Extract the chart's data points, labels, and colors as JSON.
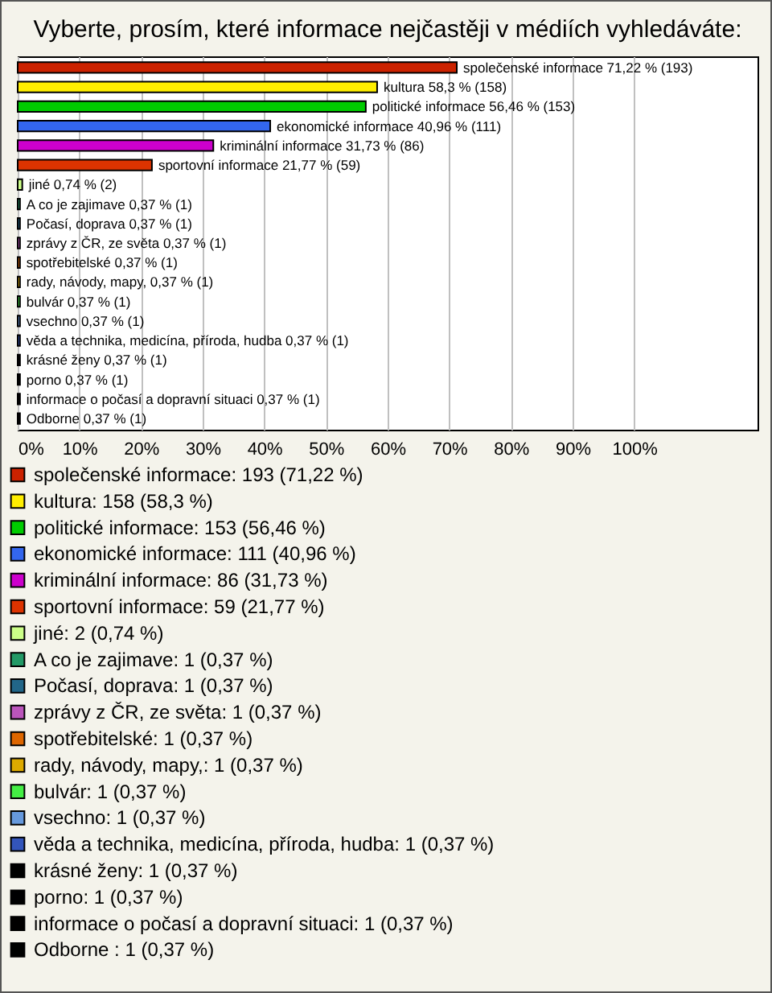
{
  "chart_data": {
    "type": "bar",
    "orientation": "horizontal",
    "title": "Vyberte, prosím, které informace nejčastěji v médiích vyhledáváte:",
    "categories": [
      null,
      null,
      null,
      null,
      null,
      null,
      null,
      null,
      null,
      null,
      null,
      null,
      null,
      null,
      null,
      null,
      null,
      null,
      null
    ],
    "series": [
      {
        "name": "společenské informace: 193 (71,22 %)",
        "color": "#cc2200",
        "values": [
          71.22,
          null,
          null,
          null,
          null,
          null,
          null,
          null,
          null,
          null,
          null,
          null,
          null,
          null,
          null,
          null,
          null,
          null,
          null
        ],
        "value_labels": [
          "společenské informace 71,22 % (193)",
          null,
          null,
          null,
          null,
          null,
          null,
          null,
          null,
          null,
          null,
          null,
          null,
          null,
          null,
          null,
          null,
          null,
          null
        ]
      },
      {
        "name": "kultura: 158 (58,3 %)",
        "color": "#ffee00",
        "values": [
          null,
          58.3,
          null,
          null,
          null,
          null,
          null,
          null,
          null,
          null,
          null,
          null,
          null,
          null,
          null,
          null,
          null,
          null,
          null
        ],
        "value_labels": [
          null,
          "kultura 58,3 % (158)",
          null,
          null,
          null,
          null,
          null,
          null,
          null,
          null,
          null,
          null,
          null,
          null,
          null,
          null,
          null,
          null,
          null
        ]
      },
      {
        "name": "politické informace: 153 (56,46 %)",
        "color": "#00cc00",
        "values": [
          null,
          null,
          56.46,
          null,
          null,
          null,
          null,
          null,
          null,
          null,
          null,
          null,
          null,
          null,
          null,
          null,
          null,
          null,
          null
        ],
        "value_labels": [
          null,
          null,
          "politické informace 56,46 % (153)",
          null,
          null,
          null,
          null,
          null,
          null,
          null,
          null,
          null,
          null,
          null,
          null,
          null,
          null,
          null,
          null
        ]
      },
      {
        "name": "ekonomické informace: 111 (40,96 %)",
        "color": "#3366ee",
        "values": [
          null,
          null,
          null,
          40.96,
          null,
          null,
          null,
          null,
          null,
          null,
          null,
          null,
          null,
          null,
          null,
          null,
          null,
          null,
          null
        ],
        "value_labels": [
          null,
          null,
          null,
          "ekonomické informace 40,96 % (111)",
          null,
          null,
          null,
          null,
          null,
          null,
          null,
          null,
          null,
          null,
          null,
          null,
          null,
          null,
          null
        ]
      },
      {
        "name": "kriminální informace: 86 (31,73 %)",
        "color": "#cc00cc",
        "values": [
          null,
          null,
          null,
          null,
          31.73,
          null,
          null,
          null,
          null,
          null,
          null,
          null,
          null,
          null,
          null,
          null,
          null,
          null,
          null
        ],
        "value_labels": [
          null,
          null,
          null,
          null,
          "kriminální informace 31,73 % (86)",
          null,
          null,
          null,
          null,
          null,
          null,
          null,
          null,
          null,
          null,
          null,
          null,
          null,
          null
        ]
      },
      {
        "name": "sportovní informace: 59 (21,77 %)",
        "color": "#dd3300",
        "values": [
          null,
          null,
          null,
          null,
          null,
          21.77,
          null,
          null,
          null,
          null,
          null,
          null,
          null,
          null,
          null,
          null,
          null,
          null,
          null
        ],
        "value_labels": [
          null,
          null,
          null,
          null,
          null,
          "sportovní informace 21,77 % (59)",
          null,
          null,
          null,
          null,
          null,
          null,
          null,
          null,
          null,
          null,
          null,
          null,
          null
        ]
      },
      {
        "name": "jiné: 2 (0,74 %)",
        "color": "#ccff88",
        "values": [
          null,
          null,
          null,
          null,
          null,
          null,
          0.74,
          null,
          null,
          null,
          null,
          null,
          null,
          null,
          null,
          null,
          null,
          null,
          null
        ],
        "value_labels": [
          null,
          null,
          null,
          null,
          null,
          null,
          "jiné 0,74 % (2)",
          null,
          null,
          null,
          null,
          null,
          null,
          null,
          null,
          null,
          null,
          null,
          null
        ]
      },
      {
        "name": "A co je zajimave: 1 (0,37 %)",
        "color": "#229966",
        "values": [
          null,
          null,
          null,
          null,
          null,
          null,
          null,
          0.37,
          null,
          null,
          null,
          null,
          null,
          null,
          null,
          null,
          null,
          null,
          null
        ],
        "value_labels": [
          null,
          null,
          null,
          null,
          null,
          null,
          null,
          "A co je zajimave 0,37 % (1)",
          null,
          null,
          null,
          null,
          null,
          null,
          null,
          null,
          null,
          null,
          null
        ]
      },
      {
        "name": "Počasí, doprava: 1 (0,37 %)",
        "color": "#226688",
        "values": [
          null,
          null,
          null,
          null,
          null,
          null,
          null,
          null,
          0.37,
          null,
          null,
          null,
          null,
          null,
          null,
          null,
          null,
          null,
          null
        ],
        "value_labels": [
          null,
          null,
          null,
          null,
          null,
          null,
          null,
          null,
          "Počasí, doprava 0,37 % (1)",
          null,
          null,
          null,
          null,
          null,
          null,
          null,
          null,
          null,
          null
        ]
      },
      {
        "name": "zprávy z ČR, ze světa: 1 (0,37 %)",
        "color": "#bb55bb",
        "values": [
          null,
          null,
          null,
          null,
          null,
          null,
          null,
          null,
          null,
          0.37,
          null,
          null,
          null,
          null,
          null,
          null,
          null,
          null,
          null
        ],
        "value_labels": [
          null,
          null,
          null,
          null,
          null,
          null,
          null,
          null,
          null,
          "zprávy z ČR, ze světa 0,37 % (1)",
          null,
          null,
          null,
          null,
          null,
          null,
          null,
          null,
          null
        ]
      },
      {
        "name": "spotřebitelské: 1 (0,37 %)",
        "color": "#dd6600",
        "values": [
          null,
          null,
          null,
          null,
          null,
          null,
          null,
          null,
          null,
          null,
          0.37,
          null,
          null,
          null,
          null,
          null,
          null,
          null,
          null
        ],
        "value_labels": [
          null,
          null,
          null,
          null,
          null,
          null,
          null,
          null,
          null,
          null,
          "spotřebitelské 0,37 % (1)",
          null,
          null,
          null,
          null,
          null,
          null,
          null,
          null
        ]
      },
      {
        "name": "rady, návody, mapy,: 1 (0,37 %)",
        "color": "#ddaa00",
        "values": [
          null,
          null,
          null,
          null,
          null,
          null,
          null,
          null,
          null,
          null,
          null,
          0.37,
          null,
          null,
          null,
          null,
          null,
          null,
          null
        ],
        "value_labels": [
          null,
          null,
          null,
          null,
          null,
          null,
          null,
          null,
          null,
          null,
          null,
          "rady, návody, mapy, 0,37 % (1)",
          null,
          null,
          null,
          null,
          null,
          null,
          null
        ]
      },
      {
        "name": "bulvár: 1 (0,37 %)",
        "color": "#44ee44",
        "values": [
          null,
          null,
          null,
          null,
          null,
          null,
          null,
          null,
          null,
          null,
          null,
          null,
          0.37,
          null,
          null,
          null,
          null,
          null,
          null
        ],
        "value_labels": [
          null,
          null,
          null,
          null,
          null,
          null,
          null,
          null,
          null,
          null,
          null,
          null,
          "bulvár 0,37 % (1)",
          null,
          null,
          null,
          null,
          null,
          null
        ]
      },
      {
        "name": "vsechno: 1 (0,37 %)",
        "color": "#6699dd",
        "values": [
          null,
          null,
          null,
          null,
          null,
          null,
          null,
          null,
          null,
          null,
          null,
          null,
          null,
          0.37,
          null,
          null,
          null,
          null,
          null
        ],
        "value_labels": [
          null,
          null,
          null,
          null,
          null,
          null,
          null,
          null,
          null,
          null,
          null,
          null,
          null,
          "vsechno 0,37 % (1)",
          null,
          null,
          null,
          null,
          null
        ]
      },
      {
        "name": "věda a technika, medicína, příroda, hudba: 1 (0,37 %)",
        "color": "#3355bb",
        "values": [
          null,
          null,
          null,
          null,
          null,
          null,
          null,
          null,
          null,
          null,
          null,
          null,
          null,
          null,
          0.37,
          null,
          null,
          null,
          null
        ],
        "value_labels": [
          null,
          null,
          null,
          null,
          null,
          null,
          null,
          null,
          null,
          null,
          null,
          null,
          null,
          null,
          "věda a technika, medicína, příroda, hudba 0,37 % (1)",
          null,
          null,
          null,
          null
        ]
      },
      {
        "name": "krásné ženy: 1 (0,37 %)",
        "color": "#000000",
        "values": [
          null,
          null,
          null,
          null,
          null,
          null,
          null,
          null,
          null,
          null,
          null,
          null,
          null,
          null,
          null,
          0.37,
          null,
          null,
          null
        ],
        "value_labels": [
          null,
          null,
          null,
          null,
          null,
          null,
          null,
          null,
          null,
          null,
          null,
          null,
          null,
          null,
          null,
          "krásné ženy 0,37 % (1)",
          null,
          null,
          null
        ]
      },
      {
        "name": "porno: 1 (0,37 %)",
        "color": "#000001",
        "values": [
          null,
          null,
          null,
          null,
          null,
          null,
          null,
          null,
          null,
          null,
          null,
          null,
          null,
          null,
          null,
          null,
          0.37,
          null,
          null
        ],
        "value_labels": [
          null,
          null,
          null,
          null,
          null,
          null,
          null,
          null,
          null,
          null,
          null,
          null,
          null,
          null,
          null,
          null,
          "porno 0,37 % (1)",
          null,
          null
        ]
      },
      {
        "name": "informace o počasí a dopravní situaci: 1 (0,37 %)",
        "color": "#010000",
        "values": [
          null,
          null,
          null,
          null,
          null,
          null,
          null,
          null,
          null,
          null,
          null,
          null,
          null,
          null,
          null,
          null,
          null,
          0.37,
          null
        ],
        "value_labels": [
          null,
          null,
          null,
          null,
          null,
          null,
          null,
          null,
          null,
          null,
          null,
          null,
          null,
          null,
          null,
          null,
          null,
          "informace o počasí a dopravní situaci 0,37 % (1)",
          null
        ]
      },
      {
        "name": "Odborne : 1 (0,37 %)",
        "color": "#000100",
        "values": [
          null,
          null,
          null,
          null,
          null,
          null,
          null,
          null,
          null,
          null,
          null,
          null,
          null,
          null,
          null,
          null,
          null,
          null,
          0.37
        ],
        "value_labels": [
          null,
          null,
          null,
          null,
          null,
          null,
          null,
          null,
          null,
          null,
          null,
          null,
          null,
          null,
          null,
          null,
          null,
          null,
          "Odborne  0,37 % (1)"
        ]
      }
    ],
    "xlim": [
      0,
      120
    ],
    "xticks": [
      {
        "value": 0,
        "label": "0%"
      },
      {
        "value": 10,
        "label": "10%"
      },
      {
        "value": 20,
        "label": "20%"
      },
      {
        "value": 30,
        "label": "30%"
      },
      {
        "value": 40,
        "label": "40%"
      },
      {
        "value": 50,
        "label": "50%"
      },
      {
        "value": 60,
        "label": "60%"
      },
      {
        "value": 70,
        "label": "70%"
      },
      {
        "value": 80,
        "label": "80%"
      },
      {
        "value": 90,
        "label": "90%"
      },
      {
        "value": 100,
        "label": "100%"
      }
    ],
    "grid": "x",
    "legend": "bottom"
  }
}
